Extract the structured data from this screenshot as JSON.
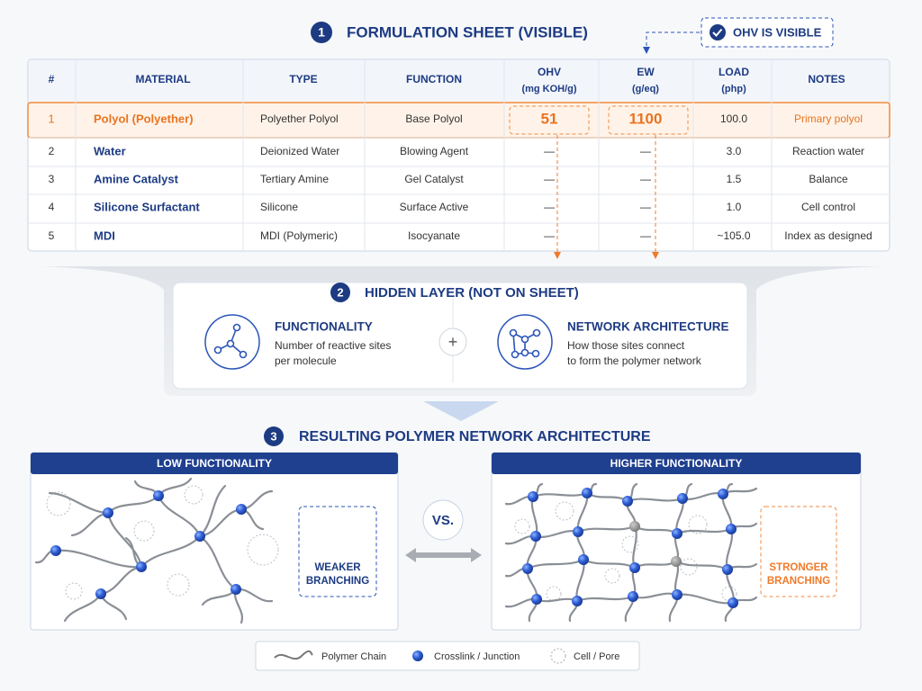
{
  "section1": {
    "number": "1",
    "title": "FORMULATION SHEET (VISIBLE)",
    "callout": "OHV IS VISIBLE"
  },
  "table": {
    "headers": [
      "#",
      "MATERIAL",
      "TYPE",
      "FUNCTION",
      [
        "OHV",
        "(mg KOH/g)"
      ],
      [
        "EW",
        "(g/eq)"
      ],
      [
        "LOAD",
        "(php)"
      ],
      "NOTES"
    ],
    "rows": [
      [
        "1",
        "Polyol (Polyether)",
        "Polyether Polyol",
        "Base Polyol",
        "51",
        "1100",
        "100.0",
        "Primary polyol"
      ],
      [
        "2",
        "Water",
        "Deionized Water",
        "Blowing Agent",
        "—",
        "—",
        "3.0",
        "Reaction water"
      ],
      [
        "3",
        "Amine Catalyst",
        "Tertiary Amine",
        "Gel Catalyst",
        "—",
        "—",
        "1.5",
        "Balance"
      ],
      [
        "4",
        "Silicone Surfactant",
        "Silicone",
        "Surface Active",
        "—",
        "—",
        "1.0",
        "Cell control"
      ],
      [
        "5",
        "MDI",
        "MDI (Polymeric)",
        "Isocyanate",
        "—",
        "—",
        "~105.0",
        "Index as designed"
      ]
    ]
  },
  "section2": {
    "number": "2",
    "title": "HIDDEN LAYER (NOT ON SHEET)",
    "plus": "+",
    "cards": [
      {
        "title": "FUNCTIONALITY",
        "text": [
          "Number of reactive sites",
          "per molecule"
        ]
      },
      {
        "title": "NETWORK ARCHITECTURE",
        "text": [
          "How those sites connect",
          "to form the polymer network"
        ]
      }
    ]
  },
  "section3": {
    "number": "3",
    "title": "RESULTING POLYMER NETWORK ARCHITECTURE",
    "vs": "VS.",
    "panels": [
      {
        "title": "LOW FUNCTIONALITY",
        "label": [
          "WEAKER",
          "BRANCHING"
        ]
      },
      {
        "title": "HIGHER FUNCTIONALITY",
        "label": [
          "STRONGER",
          "BRANCHING"
        ]
      }
    ]
  },
  "legend": [
    "Polymer Chain",
    "Crosslink / Junction",
    "Cell / Pore"
  ]
}
